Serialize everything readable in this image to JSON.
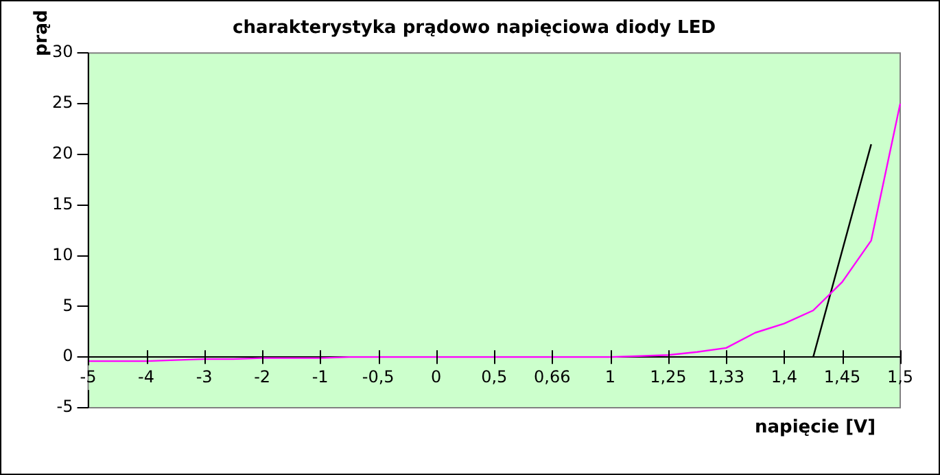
{
  "chart_data": {
    "type": "line",
    "title": "charakterystyka prądowo napięciowa diody LED",
    "xlabel": "napięcie [V]",
    "ylabel": "prąd",
    "categories": [
      "-5",
      null,
      "-4",
      null,
      "-3",
      null,
      "-2",
      null,
      "-1",
      null,
      "-0,5",
      null,
      "0",
      null,
      "0,5",
      null,
      "0,66",
      null,
      "1",
      null,
      "1,25",
      null,
      "1,33",
      null,
      "1,4",
      null,
      "1,45",
      null,
      "1,5"
    ],
    "ylim": [
      -5,
      30
    ],
    "yticks": [
      -5,
      0,
      5,
      10,
      15,
      20,
      25,
      30
    ],
    "grid": false,
    "legend": false,
    "marker": "none",
    "line_style": "solid",
    "series": [
      {
        "color": "#ff00ff",
        "values": [
          -0.4,
          -0.4,
          -0.4,
          -0.3,
          -0.2,
          -0.2,
          -0.1,
          -0.1,
          -0.1,
          0,
          0,
          0,
          0,
          0,
          0,
          0,
          0,
          0,
          0,
          0.1,
          0.2,
          0.5,
          0.9,
          2.4,
          3.3,
          4.6,
          7.4,
          11.5,
          25
        ]
      },
      {
        "color": "#000000",
        "values": [
          null,
          null,
          null,
          null,
          null,
          null,
          null,
          null,
          null,
          null,
          null,
          null,
          null,
          null,
          null,
          null,
          null,
          null,
          null,
          null,
          null,
          null,
          null,
          null,
          null,
          0,
          null,
          21,
          null
        ]
      }
    ]
  }
}
